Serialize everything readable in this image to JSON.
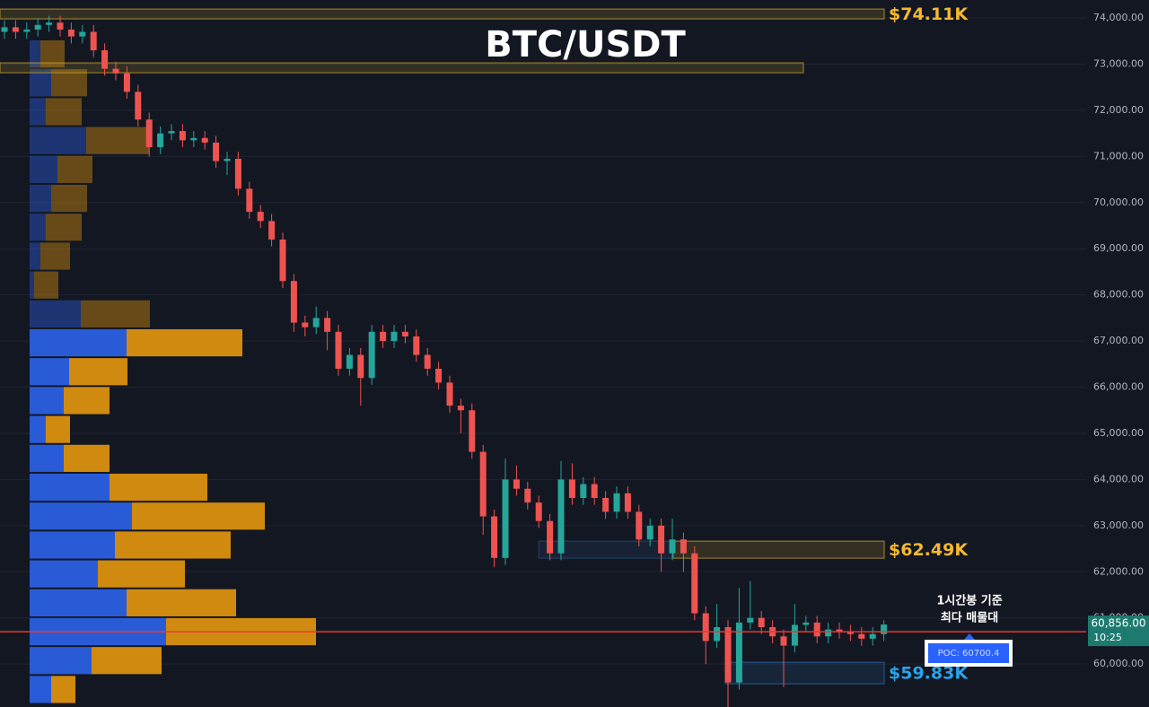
{
  "chart_data": {
    "type": "candlestick",
    "title": "BTC/USDT",
    "ylim": [
      59070,
      74390
    ],
    "yticks": [
      {
        "value": 60000,
        "label": "60,000.00"
      },
      {
        "value": 61000,
        "label": "61,000.00"
      },
      {
        "value": 62000,
        "label": "62,000.00"
      },
      {
        "value": 63000,
        "label": "63,000.00"
      },
      {
        "value": 64000,
        "label": "64,000.00"
      },
      {
        "value": 65000,
        "label": "65,000.00"
      },
      {
        "value": 66000,
        "label": "66,000.00"
      },
      {
        "value": 67000,
        "label": "67,000.00"
      },
      {
        "value": 68000,
        "label": "68,000.00"
      },
      {
        "value": 69000,
        "label": "69,000.00"
      },
      {
        "value": 70000,
        "label": "70,000.00"
      },
      {
        "value": 71000,
        "label": "71,000.00"
      },
      {
        "value": 72000,
        "label": "72,000.00"
      },
      {
        "value": 73000,
        "label": "73,000.00"
      },
      {
        "value": 74000,
        "label": "74,000.00"
      }
    ],
    "grid": true,
    "up_color": "#26a69a",
    "down_color": "#ef5350",
    "open": [
      73700,
      73800,
      73700,
      73750,
      73850,
      73900,
      73750,
      73600,
      73700,
      73300,
      72900,
      72800,
      72400,
      71800,
      71200,
      71500,
      71550,
      71350,
      71400,
      71300,
      70900,
      70950,
      70300,
      69800,
      69600,
      69200,
      68300,
      67400,
      67300,
      67500,
      67200,
      66400,
      66700,
      66200,
      67200,
      67000,
      67200,
      67100,
      66700,
      66400,
      66100,
      65600,
      65500,
      64600,
      63200,
      62300,
      64000,
      63800,
      63500,
      63100,
      62400,
      64000,
      63600,
      63900,
      63600,
      63300,
      63700,
      63300,
      62700,
      63000,
      62400,
      62700,
      62400,
      61100,
      60500,
      60800,
      59600,
      60900,
      61000,
      60800,
      60600,
      60400,
      60850,
      60900,
      60600,
      60750,
      60700,
      60650,
      60550,
      60650
    ],
    "high": [
      73950,
      73950,
      73900,
      74000,
      74050,
      74050,
      73900,
      73850,
      73850,
      73450,
      73050,
      72950,
      72550,
      71950,
      71650,
      71700,
      71700,
      71550,
      71550,
      71450,
      71100,
      71100,
      70450,
      69950,
      69750,
      69350,
      68450,
      67550,
      67750,
      67650,
      67350,
      66850,
      66850,
      67350,
      67350,
      67350,
      67350,
      67250,
      66850,
      66550,
      66250,
      65750,
      65650,
      64750,
      63350,
      64450,
      64300,
      63950,
      63650,
      63250,
      64400,
      64350,
      64050,
      64050,
      63750,
      63850,
      63850,
      63450,
      63150,
      63150,
      63150,
      62850,
      62550,
      61250,
      61300,
      60950,
      61650,
      61800,
      61150,
      60950,
      60750,
      61300,
      61050,
      61050,
      60900,
      60900,
      60850,
      60800,
      60800,
      60950
    ],
    "low": [
      73550,
      73550,
      73550,
      73600,
      73700,
      73600,
      73450,
      73450,
      73150,
      72750,
      72650,
      72250,
      71650,
      71000,
      71050,
      71350,
      71200,
      71200,
      71150,
      70750,
      70600,
      70150,
      69650,
      69450,
      69050,
      68150,
      67200,
      67100,
      67150,
      66800,
      66250,
      66250,
      65600,
      66050,
      66850,
      66850,
      66950,
      66550,
      66250,
      65950,
      65450,
      65000,
      64450,
      62800,
      62100,
      62150,
      63650,
      63350,
      62950,
      62250,
      62250,
      63450,
      63450,
      63450,
      63150,
      63150,
      63150,
      62550,
      62550,
      62000,
      62250,
      62000,
      60950,
      60000,
      60350,
      59000,
      59450,
      60750,
      60650,
      60450,
      59500,
      60250,
      60700,
      60450,
      60450,
      60550,
      60500,
      60400,
      60400,
      60500
    ],
    "close": [
      73800,
      73700,
      73750,
      73850,
      73900,
      73750,
      73600,
      73700,
      73300,
      72900,
      72800,
      72400,
      71800,
      71200,
      71500,
      71550,
      71350,
      71400,
      71300,
      70900,
      70950,
      70300,
      69800,
      69600,
      69200,
      68300,
      67400,
      67300,
      67500,
      67200,
      66400,
      66700,
      66200,
      67200,
      67000,
      67200,
      67100,
      66700,
      66400,
      66100,
      65600,
      65500,
      64600,
      63200,
      62300,
      64000,
      63800,
      63500,
      63100,
      62400,
      64000,
      63600,
      63900,
      63600,
      63300,
      63700,
      63300,
      62700,
      63000,
      62400,
      62700,
      62400,
      61100,
      60500,
      60800,
      59600,
      60900,
      61000,
      60800,
      60600,
      60400,
      60850,
      60900,
      60600,
      60750,
      60700,
      60650,
      60550,
      60650,
      60856
    ],
    "volume_profile": {
      "buy_color": "#2a5bd7",
      "sell_color": "#d18a10",
      "levels": [
        73222,
        72596,
        71970,
        71344,
        70718,
        70092,
        69466,
        68840,
        68214,
        67588,
        66962,
        66336,
        65710,
        65084,
        64458,
        63832,
        63206,
        62580,
        61954,
        61328,
        60702,
        60076,
        59450
      ],
      "buy": [
        12,
        24,
        18,
        63,
        31,
        24,
        18,
        12,
        5,
        57,
        108,
        44,
        38,
        18,
        38,
        89,
        114,
        95,
        76,
        108,
        152,
        69,
        24
      ],
      "sell": [
        27,
        40,
        40,
        70,
        39,
        40,
        40,
        33,
        27,
        77,
        129,
        65,
        51,
        27,
        51,
        109,
        148,
        129,
        97,
        122,
        167,
        78,
        27
      ]
    },
    "zones": [
      {
        "label": "$74.11K",
        "top": 74194,
        "bottom": 73980,
        "color": "#c9a227"
      },
      {
        "top": 73028,
        "bottom": 72814,
        "color": "#c9a227"
      },
      {
        "label": "$62.49K",
        "top": 62664,
        "bottom": 62295,
        "color": "#c9a227"
      },
      {
        "label": "$59.83K",
        "top": 60039,
        "bottom": 59572,
        "color": "#2d6ca8"
      }
    ],
    "poc": {
      "value": 60700.4,
      "label": "POC: 60700.4",
      "color": "#e53935"
    },
    "note": [
      "1시간봉 기준",
      "최다 매물대"
    ],
    "last_price": {
      "value": 60856,
      "label": "60,856.00"
    },
    "countdown": "10:25"
  }
}
